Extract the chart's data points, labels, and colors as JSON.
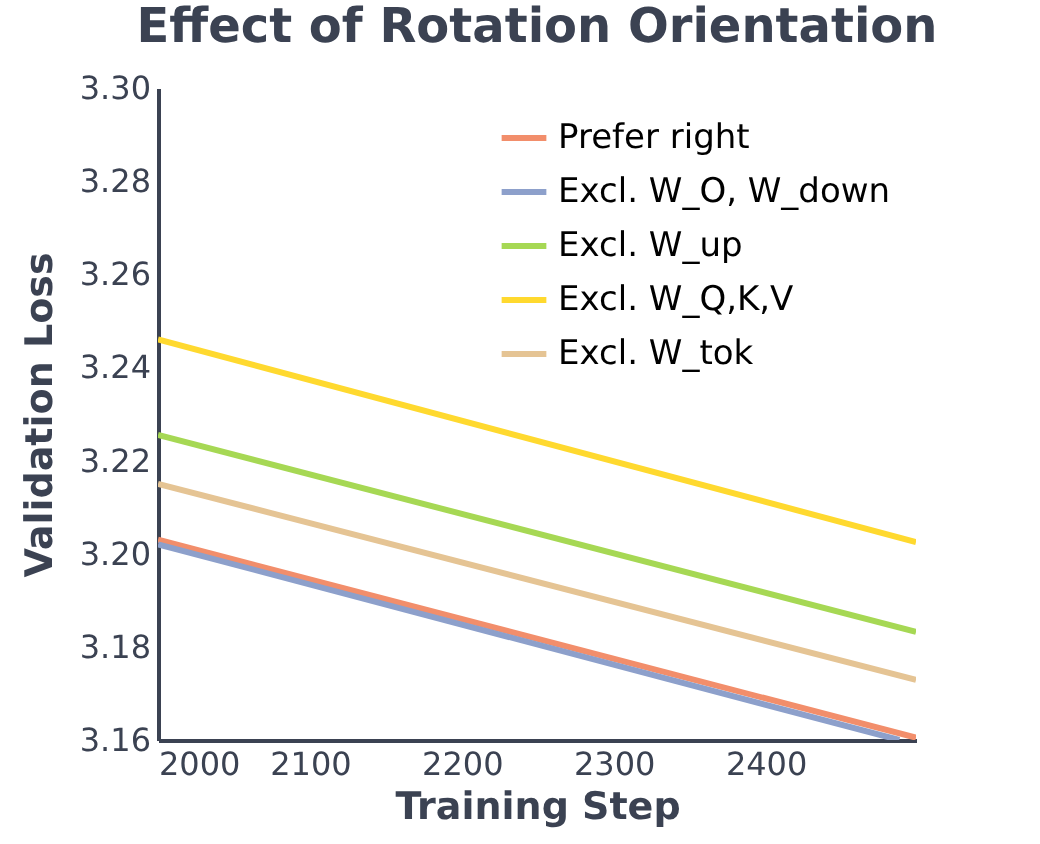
{
  "chart_data": {
    "type": "line",
    "title": "Effect of Rotation Orientation",
    "xlabel": "Training Step",
    "ylabel": "Validation Loss",
    "x": [
      2000,
      2499
    ],
    "series": [
      {
        "name": "Prefer right",
        "color": "#f28e6b",
        "values": [
          3.203,
          3.1605
        ]
      },
      {
        "name": "Excl. W_O, W_down",
        "color": "#8da0cb",
        "x": [
          2000,
          2488
        ],
        "values": [
          3.202,
          3.16
        ]
      },
      {
        "name": "Excl. W_up",
        "color": "#a6d854",
        "values": [
          3.2255,
          3.1832
        ]
      },
      {
        "name": "Excl. W_Q,K,V",
        "color": "#ffd92f",
        "values": [
          3.246,
          3.2025
        ]
      },
      {
        "name": "Excl. W_tok",
        "color": "#e5c494",
        "values": [
          3.215,
          3.1729
        ]
      }
    ],
    "xlim": [
      2000,
      2499
    ],
    "xticks": [
      2000,
      2100,
      2200,
      2300,
      2400
    ],
    "ylim": [
      3.16,
      3.3
    ],
    "yticks": [
      3.16,
      3.18,
      {
        "value": 3.2,
        "label": "3.20"
      },
      3.22,
      3.24,
      3.26,
      3.28,
      {
        "value": 3.3,
        "label": "3.30"
      }
    ],
    "grid": false,
    "legend": "top right",
    "marker": "none",
    "line_style": "solid"
  }
}
